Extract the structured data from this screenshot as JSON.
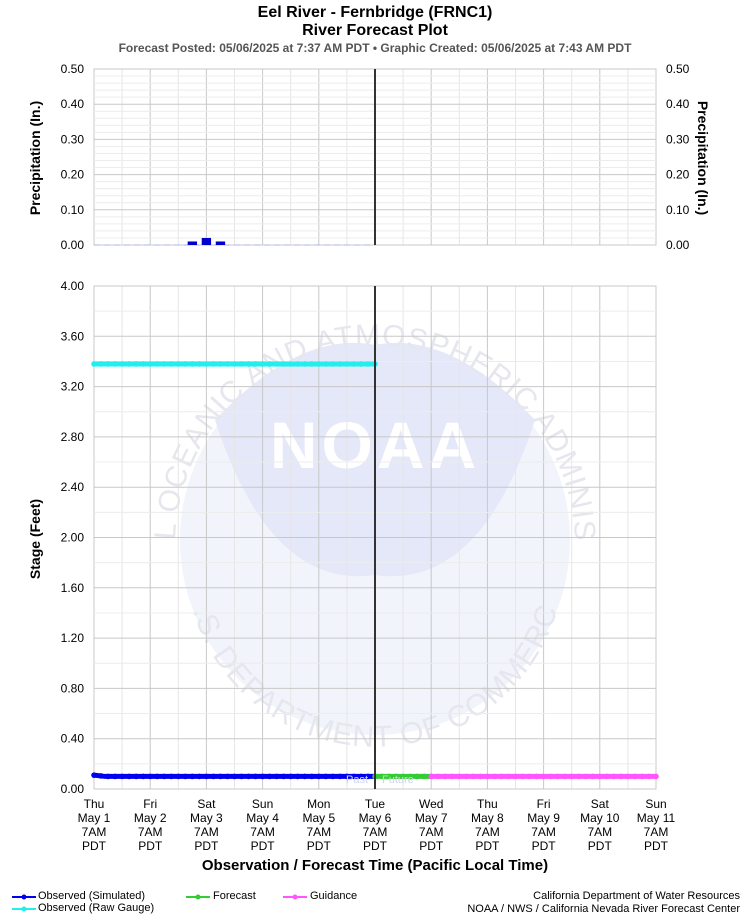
{
  "header": {
    "title_line1": "Eel River - Fernbridge (FRNC1)",
    "title_line2": "River Forecast Plot",
    "subtitle": "Forecast Posted: 05/06/2025 at 7:37 AM PDT  •  Graphic Created: 05/06/2025 at 7:43 AM PDT"
  },
  "watermark": {
    "logo_text": "NOAA",
    "ring_text": "NATIONAL OCEANIC AND ATMOSPHERIC ADMINISTRATION",
    "bottom_text": "U.S. DEPARTMENT OF COMMERCE"
  },
  "marker": {
    "past": "Past",
    "future": "Future"
  },
  "legend": {
    "observed_simulated": "Observed (Simulated)",
    "observed_raw": "Observed (Raw Gauge)",
    "forecast": "Forecast",
    "guidance": "Guidance"
  },
  "credits": {
    "line1": "California Department of Water Resources",
    "line2": "NOAA / NWS / California Nevada River Forecast Center"
  },
  "colors": {
    "observed_simulated": "#0000ee",
    "observed_raw": "#22eeee",
    "forecast": "#33cc33",
    "guidance": "#ff55ff",
    "precip": "#0000cc",
    "grid": "#cccccc",
    "now_line": "#333333"
  },
  "chart_data": [
    {
      "type": "bar",
      "name": "precipitation",
      "ylabel": "Precipitation (In.)",
      "ylabel_right": "Precipitation (In.)",
      "ylim": [
        0,
        0.5
      ],
      "yticks": [
        "0.00",
        "0.10",
        "0.20",
        "0.30",
        "0.40",
        "0.50"
      ],
      "grid": true,
      "bars": [
        {
          "time_days": 1.75,
          "value": 0.01
        },
        {
          "time_days": 2.0,
          "value": 0.02
        },
        {
          "time_days": 2.25,
          "value": 0.01
        }
      ],
      "zero_line_days": [
        0,
        5
      ]
    },
    {
      "type": "line",
      "name": "stage",
      "ylabel": "Stage (Feet)",
      "xlabel": "Observation / Forecast Time (Pacific Local Time)",
      "ylim": [
        0,
        4
      ],
      "yticks": [
        "0.00",
        "0.40",
        "0.80",
        "1.20",
        "1.60",
        "2.00",
        "2.40",
        "2.80",
        "3.20",
        "3.60",
        "4.00"
      ],
      "grid": true,
      "xlim_days": [
        0,
        10
      ],
      "now_days": 5,
      "xticks": [
        {
          "day": "Thu",
          "date": "May 1",
          "time": "7AM",
          "tz": "PDT"
        },
        {
          "day": "Fri",
          "date": "May 2",
          "time": "7AM",
          "tz": "PDT"
        },
        {
          "day": "Sat",
          "date": "May 3",
          "time": "7AM",
          "tz": "PDT"
        },
        {
          "day": "Sun",
          "date": "May 4",
          "time": "7AM",
          "tz": "PDT"
        },
        {
          "day": "Mon",
          "date": "May 5",
          "time": "7AM",
          "tz": "PDT"
        },
        {
          "day": "Tue",
          "date": "May 6",
          "time": "7AM",
          "tz": "PDT"
        },
        {
          "day": "Wed",
          "date": "May 7",
          "time": "7AM",
          "tz": "PDT"
        },
        {
          "day": "Thu",
          "date": "May 8",
          "time": "7AM",
          "tz": "PDT"
        },
        {
          "day": "Fri",
          "date": "May 9",
          "time": "7AM",
          "tz": "PDT"
        },
        {
          "day": "Sat",
          "date": "May 10",
          "time": "7AM",
          "tz": "PDT"
        },
        {
          "day": "Sun",
          "date": "May 11",
          "time": "7AM",
          "tz": "PDT"
        }
      ],
      "series": [
        {
          "name": "Observed (Raw Gauge)",
          "key": "observed_raw",
          "x_days": [
            0,
            5
          ],
          "values": [
            3.38,
            3.38
          ]
        },
        {
          "name": "Observed (Simulated)",
          "key": "observed_simulated",
          "x_days": [
            0,
            0.2,
            5
          ],
          "values": [
            0.11,
            0.1,
            0.1
          ]
        },
        {
          "name": "Forecast",
          "key": "forecast",
          "x_days": [
            5,
            6
          ],
          "values": [
            0.1,
            0.1
          ]
        },
        {
          "name": "Guidance",
          "key": "guidance",
          "x_days": [
            6,
            10
          ],
          "values": [
            0.1,
            0.1
          ]
        }
      ]
    }
  ]
}
